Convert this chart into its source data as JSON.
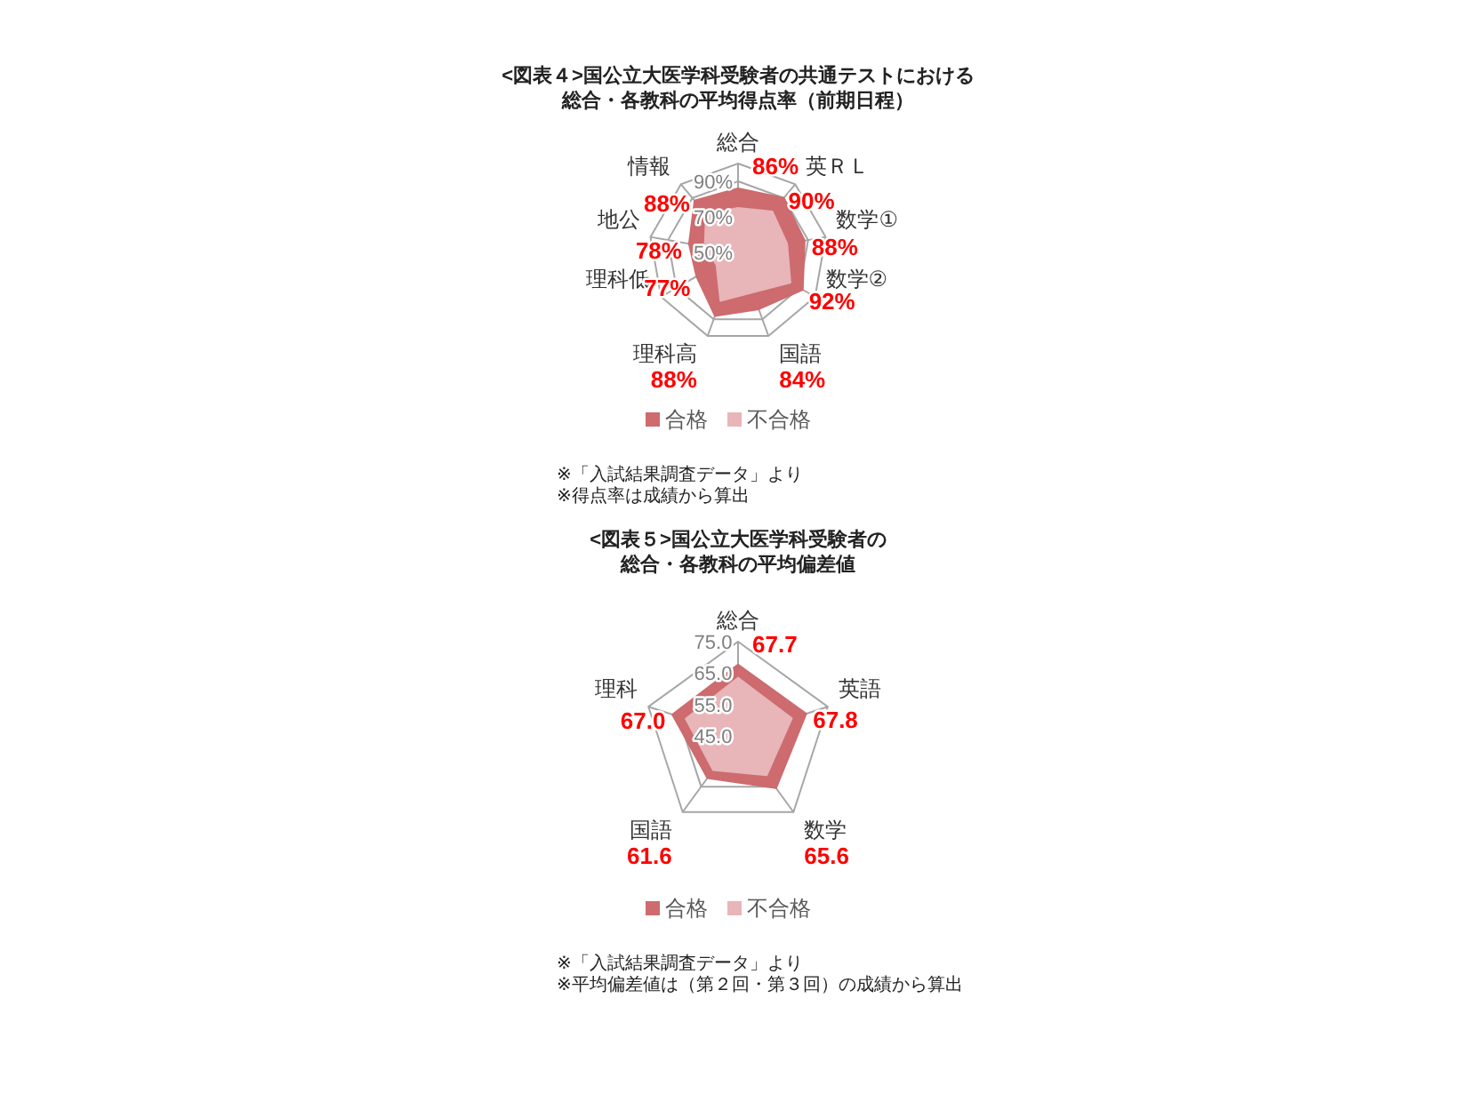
{
  "chart_data": [
    {
      "type": "radar",
      "title": "<図表４>国公立大医学科受験者の共通テストにおける",
      "subtitle": "総合・各教科の平均得点率（前期日程）",
      "categories": [
        "総合",
        "英ＲＬ",
        "数学①",
        "数学②",
        "国語",
        "理科高",
        "理科低",
        "地公",
        "情報"
      ],
      "series": [
        {
          "name": "合格",
          "color": "#cd6b6e",
          "values": [
            86,
            90,
            88,
            92,
            84,
            88,
            77,
            78,
            88
          ],
          "value_labels": [
            "86%",
            "90%",
            "88%",
            "92%",
            "84%",
            "88%",
            "77%",
            "78%",
            "88%"
          ]
        },
        {
          "name": "不合格",
          "color": "#e8b5b9",
          "values": [
            75,
            80,
            78,
            84,
            74,
            79,
            64,
            69,
            78
          ]
        }
      ],
      "ylim": [
        50,
        100
      ],
      "yticks": [
        {
          "value": 50,
          "label": "50%"
        },
        {
          "value": 70,
          "label": "70%"
        },
        {
          "value": 90,
          "label": "90%"
        }
      ],
      "legend": "bottom",
      "annotations": [
        "※「入試結果調査データ」より",
        "※得点率は成績から算出"
      ]
    },
    {
      "type": "radar",
      "title": "<図表５>国公立大医学科受験者の",
      "subtitle": "総合・各教科の平均偏差値",
      "categories": [
        "総合",
        "英語",
        "数学",
        "国語",
        "理科"
      ],
      "series": [
        {
          "name": "合格",
          "color": "#cd6b6e",
          "values": [
            67.7,
            67.8,
            65.6,
            61.6,
            67.0
          ],
          "value_labels": [
            "67.7",
            "67.8",
            "65.6",
            "61.6",
            "67.0"
          ]
        },
        {
          "name": "不合格",
          "color": "#e8b5b9",
          "values": [
            63.5,
            63.0,
            60.5,
            58.5,
            62.5
          ]
        }
      ],
      "ylim": [
        45,
        75
      ],
      "yticks": [
        {
          "value": 45,
          "label": "45.0"
        },
        {
          "value": 55,
          "label": "55.0"
        },
        {
          "value": 65,
          "label": "65.0"
        },
        {
          "value": 75,
          "label": "75.0"
        }
      ],
      "legend": "bottom",
      "annotations": [
        "※「入試結果調査データ」より",
        "※平均偏差値は（第２回・第３回）の成績から算出"
      ]
    }
  ]
}
